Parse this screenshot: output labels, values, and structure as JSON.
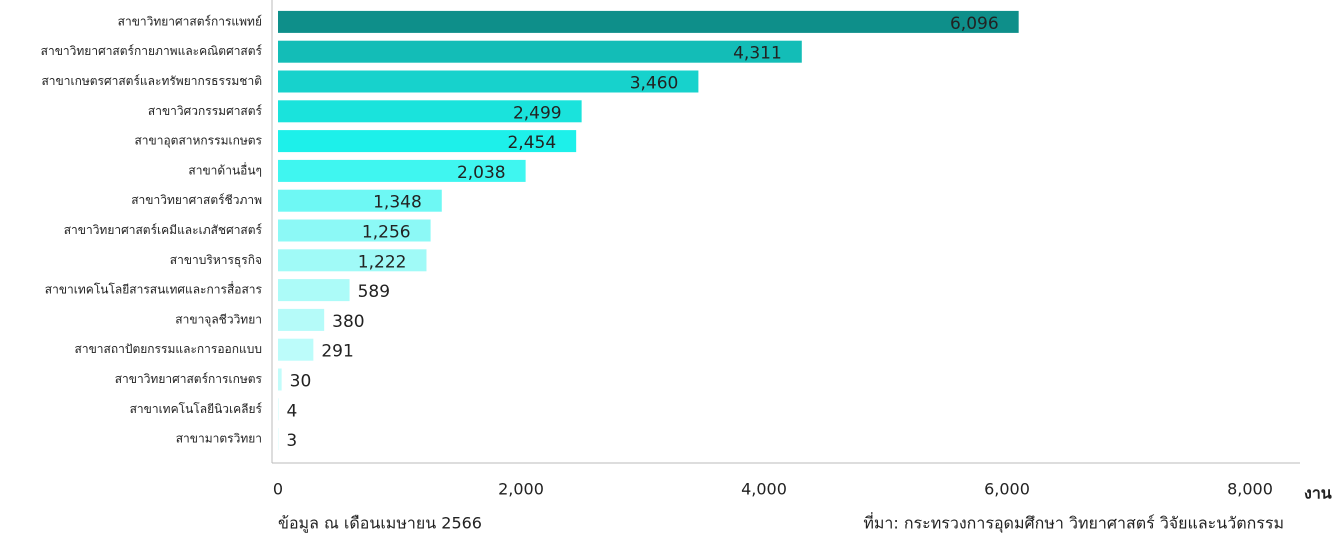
{
  "chart_data": {
    "type": "barh",
    "categories": [
      "สาขาวิทยาศาสตร์การแพทย์",
      "สาขาวิทยาศาสตร์กายภาพและคณิตศาสตร์",
      "สาขาเกษตรศาสตร์และทรัพยากรธรรมชาติ",
      "สาขาวิศวกรรมศาสตร์",
      "สาขาอุตสาหกรรมเกษตร",
      "สาขาด้านอื่นๆ",
      "สาขาวิทยาศาสตร์ชีวภาพ",
      "สาขาวิทยาศาสตร์เคมีและเภสัชศาสตร์",
      "สาขาบริหารธุรกิจ",
      "สาขาเทคโนโลยีสารสนเทศและการสื่อสาร",
      "สาขาจุลชีววิทยา",
      "สาขาสถาปัตยกรรมและการออกแบบ",
      "สาขาวิทยาศาสตร์การเกษตร",
      "สาขาเทคโนโลยีนิวเคลียร์",
      "สาขามาตรวิทยา"
    ],
    "values": [
      6096,
      4311,
      3460,
      2499,
      2454,
      2038,
      1348,
      1256,
      1222,
      589,
      380,
      291,
      30,
      4,
      3
    ],
    "value_labels": [
      "6,096",
      "4,311",
      "3,460",
      "2,499",
      "2,454",
      "2,038",
      "1,348",
      "1,256",
      "1,222",
      "589",
      "380",
      "291",
      "30",
      "4",
      "3"
    ],
    "colors": [
      "#0e8f8a",
      "#13bdb7",
      "#17d2cc",
      "#1ae3dc",
      "#1df0ea",
      "#3ff6f0",
      "#6ef8f4",
      "#8cf9f6",
      "#a0faf7",
      "#acfbf8",
      "#b5fbf9",
      "#bcfcfa",
      "#c2fcfa",
      "#c8fcfb",
      "#cdfdfb"
    ],
    "xlabel": "งาน",
    "xlim": [
      0,
      8000
    ],
    "xticks": [
      0,
      {
        "value": 2000,
        "label": "2,000"
      },
      {
        "value": 4000,
        "label": "4,000"
      },
      {
        "value": 6000,
        "label": "6,000"
      },
      {
        "value": 8000,
        "label": "8,000"
      }
    ],
    "note": "ข้อมูล ณ เดือนเมษายน 2566",
    "source": "ที่มา: กระทรวงการอุดมศึกษา วิทยาศาสตร์ วิจัยและนวัตกรรม"
  }
}
